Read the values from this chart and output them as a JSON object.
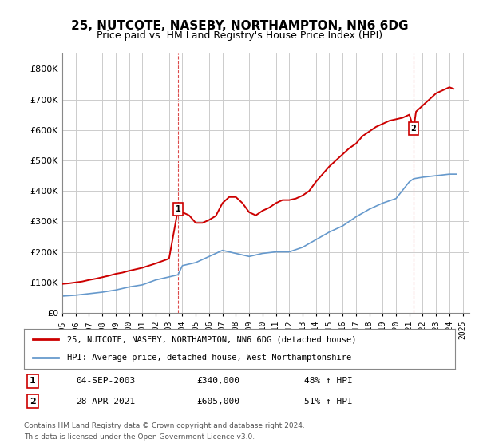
{
  "title": "25, NUTCOTE, NASEBY, NORTHAMPTON, NN6 6DG",
  "subtitle": "Price paid vs. HM Land Registry's House Price Index (HPI)",
  "legend_line1": "25, NUTCOTE, NASEBY, NORTHAMPTON, NN6 6DG (detached house)",
  "legend_line2": "HPI: Average price, detached house, West Northamptonshire",
  "annotation1": {
    "label": "1",
    "date": "04-SEP-2003",
    "price": "£340,000",
    "hpi": "48% ↑ HPI",
    "x_year": 2003.67,
    "y_val": 340000
  },
  "annotation2": {
    "label": "2",
    "date": "28-APR-2021",
    "price": "£605,000",
    "hpi": "51% ↑ HPI",
    "x_year": 2021.32,
    "y_val": 605000
  },
  "footer1": "Contains HM Land Registry data © Crown copyright and database right 2024.",
  "footer2": "This data is licensed under the Open Government Licence v3.0.",
  "ylim": [
    0,
    850000
  ],
  "xlim_start": 1995,
  "xlim_end": 2025.5,
  "line_color_red": "#cc0000",
  "line_color_blue": "#6699cc",
  "bg_color": "#ffffff",
  "grid_color": "#cccccc",
  "hpi_years": [
    1995,
    1996,
    1997,
    1998,
    1999,
    2000,
    2001,
    2002,
    2003,
    2003.67,
    2004,
    2005,
    2006,
    2007,
    2008,
    2009,
    2010,
    2011,
    2012,
    2013,
    2014,
    2015,
    2016,
    2017,
    2018,
    2019,
    2020,
    2021,
    2021.32,
    2022,
    2023,
    2024,
    2024.5
  ],
  "hpi_vals": [
    55000,
    58000,
    63000,
    68000,
    75000,
    85000,
    92000,
    108000,
    118000,
    125000,
    155000,
    165000,
    185000,
    205000,
    195000,
    185000,
    195000,
    200000,
    200000,
    215000,
    240000,
    265000,
    285000,
    315000,
    340000,
    360000,
    375000,
    430000,
    440000,
    445000,
    450000,
    455000,
    455000
  ],
  "price_years": [
    1995,
    1995.5,
    1996,
    1996.5,
    1997,
    1997.5,
    1998,
    1998.5,
    1999,
    1999.5,
    2000,
    2000.5,
    2001,
    2001.5,
    2002,
    2002.5,
    2003,
    2003.67,
    2004,
    2004.5,
    2005,
    2005.5,
    2006,
    2006.5,
    2007,
    2007.5,
    2008,
    2008.5,
    2009,
    2009.5,
    2010,
    2010.5,
    2011,
    2011.5,
    2012,
    2012.5,
    2013,
    2013.5,
    2014,
    2014.5,
    2015,
    2015.5,
    2016,
    2016.5,
    2017,
    2017.5,
    2018,
    2018.5,
    2019,
    2019.5,
    2020,
    2020.5,
    2021,
    2021.32,
    2021.5,
    2022,
    2022.5,
    2023,
    2023.5,
    2024,
    2024.3
  ],
  "price_vals": [
    95000,
    97000,
    100000,
    103000,
    108000,
    112000,
    117000,
    122000,
    128000,
    132000,
    138000,
    143000,
    148000,
    155000,
    162000,
    170000,
    178000,
    340000,
    330000,
    320000,
    295000,
    295000,
    305000,
    318000,
    360000,
    380000,
    380000,
    360000,
    330000,
    320000,
    335000,
    345000,
    360000,
    370000,
    370000,
    375000,
    385000,
    400000,
    430000,
    455000,
    480000,
    500000,
    520000,
    540000,
    555000,
    580000,
    595000,
    610000,
    620000,
    630000,
    635000,
    640000,
    650000,
    605000,
    660000,
    680000,
    700000,
    720000,
    730000,
    740000,
    735000
  ]
}
